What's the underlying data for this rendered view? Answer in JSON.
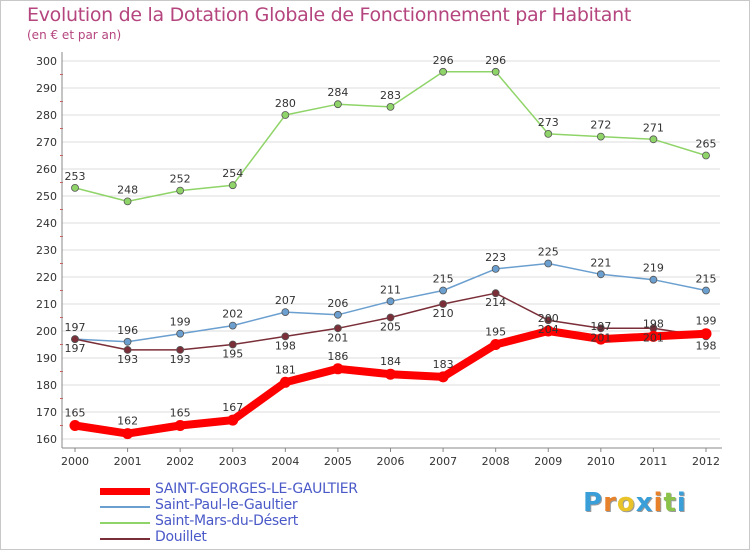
{
  "title": "Evolution de la Dotation Globale de Fonctionnement par Habitant",
  "subtitle": "(en € et par an)",
  "logo": {
    "letters": [
      "P",
      "r",
      "o",
      "x",
      "i",
      "t",
      "i"
    ],
    "colors": [
      "#3a9fd8",
      "#e8822a",
      "#e8c32a",
      "#3a9fd8",
      "#e8822a",
      "#8bc34a",
      "#3a9fd8"
    ]
  },
  "chart_data": {
    "type": "line",
    "title": "Evolution de la Dotation Globale de Fonctionnement par Habitant",
    "subtitle": "(en € et par an)",
    "x": [
      "2000",
      "2001",
      "2002",
      "2003",
      "2004",
      "2005",
      "2006",
      "2007",
      "2008",
      "2009",
      "2010",
      "2011",
      "2012"
    ],
    "ylim": [
      160,
      300
    ],
    "yticks": [
      160,
      170,
      180,
      190,
      200,
      210,
      220,
      230,
      240,
      250,
      260,
      270,
      280,
      290,
      300
    ],
    "grid": "horizontal",
    "legend_position": "bottom-left",
    "series": [
      {
        "name": "SAINT-GEORGES-LE-GAULTIER",
        "color": "#ff0000",
        "values": [
          165,
          162,
          165,
          167,
          181,
          186,
          184,
          183,
          195,
          200,
          197,
          198,
          199
        ],
        "labels": [
          "165",
          "162",
          "165",
          "167",
          "181",
          "186",
          "184",
          "183",
          "195",
          "200",
          "197",
          "198",
          "199"
        ]
      },
      {
        "name": "Saint-Paul-le-Gaultier",
        "color": "#6a9fcf",
        "values": [
          197,
          196,
          199,
          202,
          207,
          206,
          211,
          215,
          223,
          225,
          221,
          219,
          215
        ],
        "labels": [
          "197",
          "196",
          "199",
          "202",
          "207",
          "206",
          "211",
          "215",
          "223",
          "225",
          "221",
          "219",
          "215"
        ]
      },
      {
        "name": "Saint-Mars-du-Désert",
        "color": "#8fd468",
        "values": [
          253,
          248,
          252,
          254,
          280,
          284,
          283,
          296,
          296,
          273,
          272,
          271,
          265
        ],
        "labels": [
          "253",
          "248",
          "252",
          "254",
          "280",
          "284",
          "283",
          "296",
          "296",
          "273",
          "272",
          "271",
          "265"
        ]
      },
      {
        "name": "Douillet",
        "color": "#7a2e38",
        "values": [
          197,
          193,
          193,
          195,
          198,
          201,
          205,
          210,
          214,
          204,
          201,
          201,
          198
        ],
        "labels": [
          "197",
          "193",
          "193",
          "195",
          "198",
          "201",
          "205",
          "210",
          "214",
          "204",
          "201",
          "201",
          "198"
        ]
      }
    ]
  }
}
